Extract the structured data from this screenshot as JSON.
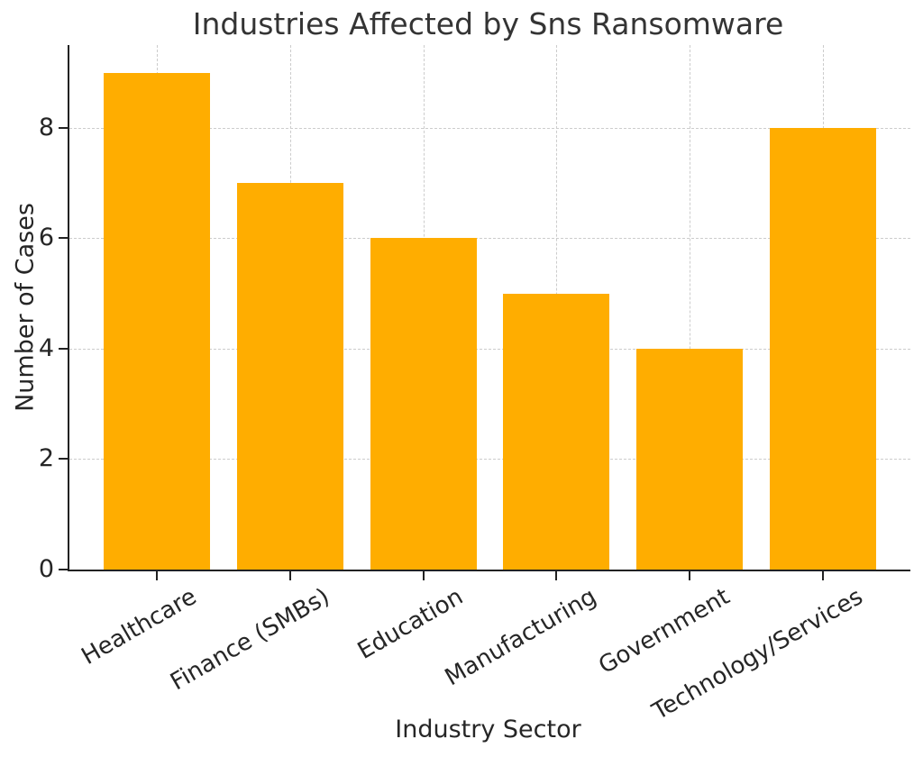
{
  "chart_data": {
    "type": "bar",
    "title": "Industries Affected by Sns Ransomware",
    "xlabel": "Industry Sector",
    "ylabel": "Number of Cases",
    "categories": [
      "Healthcare",
      "Finance (SMBs)",
      "Education",
      "Manufacturing",
      "Government",
      "Technology/Services"
    ],
    "values": [
      9,
      7,
      6,
      5,
      4,
      8
    ],
    "yticks": [
      0,
      2,
      4,
      6,
      8
    ],
    "ylim": [
      0,
      9.5
    ],
    "bar_color": "#FFAD00",
    "grid": true,
    "grid_linestyle": "dashed",
    "x_tick_rotation_deg": 30,
    "legend_position": "none"
  },
  "colors": {
    "text": "#262626",
    "title_text": "#343434",
    "grid": "#cccccc",
    "spine": "#222222",
    "background": "#ffffff"
  }
}
